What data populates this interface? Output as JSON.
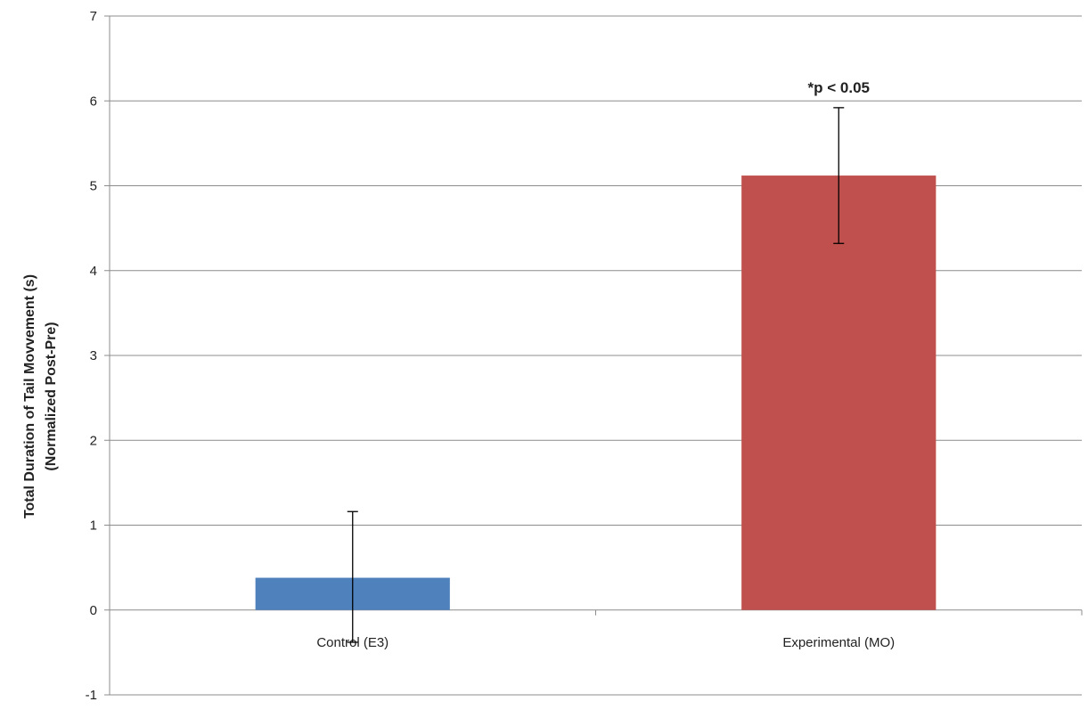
{
  "chart_data": {
    "type": "bar",
    "categories": [
      "Control (E3)",
      "Experimental (MO)"
    ],
    "values": [
      0.38,
      5.12
    ],
    "error_bars": [
      {
        "low": -0.38,
        "high": 1.16
      },
      {
        "low": 4.32,
        "high": 5.92
      }
    ],
    "colors": [
      "#4f81bd",
      "#c0504d"
    ],
    "ylabel_lines": [
      "Total Duration of Tail Movvement (s)",
      "(Normalized Post-Pre)"
    ],
    "xlabel": "",
    "title": "",
    "ylim": [
      -1,
      7
    ],
    "yticks": [
      -1,
      0,
      1,
      2,
      3,
      4,
      5,
      6,
      7
    ],
    "grid": true,
    "legend": "none",
    "annotations": [
      {
        "text": "*p < 0.05",
        "category_index": 1,
        "y": 6.15
      }
    ]
  }
}
